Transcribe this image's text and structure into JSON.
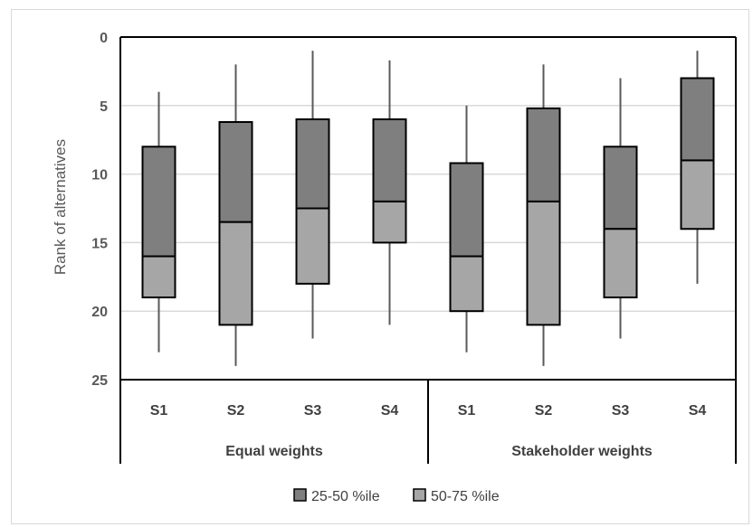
{
  "chart_data": {
    "type": "boxplot",
    "ylabel": "Rank of alternatives",
    "ylim": [
      0,
      25
    ],
    "y_inverted": true,
    "y_ticks": [
      "0",
      "5",
      "10",
      "15",
      "20",
      "25"
    ],
    "grid": true,
    "groups": [
      {
        "label": "Equal weights",
        "categories": [
          {
            "label": "S1",
            "min": 4,
            "q1": 8,
            "median": 16,
            "q3": 19,
            "max": 23
          },
          {
            "label": "S2",
            "min": 2,
            "q1": 6.2,
            "median": 13.5,
            "q3": 21,
            "max": 24
          },
          {
            "label": "S3",
            "min": 1,
            "q1": 6,
            "median": 12.5,
            "q3": 18,
            "max": 22
          },
          {
            "label": "S4",
            "min": 1.7,
            "q1": 6,
            "median": 12,
            "q3": 15,
            "max": 21
          }
        ]
      },
      {
        "label": "Stakeholder weights",
        "categories": [
          {
            "label": "S1",
            "min": 5,
            "q1": 9.2,
            "median": 16,
            "q3": 20,
            "max": 23
          },
          {
            "label": "S2",
            "min": 2,
            "q1": 5.2,
            "median": 12,
            "q3": 21,
            "max": 24
          },
          {
            "label": "S3",
            "min": 3,
            "q1": 8,
            "median": 14,
            "q3": 19,
            "max": 22
          },
          {
            "label": "S4",
            "min": 1,
            "q1": 3,
            "median": 9,
            "q3": 14,
            "max": 18
          }
        ]
      }
    ],
    "legend": {
      "position": "bottom",
      "items": [
        {
          "label": "25-50 %ile",
          "color": "#7f7f7f"
        },
        {
          "label": "50-75 %ile",
          "color": "#a6a6a6"
        }
      ]
    }
  }
}
